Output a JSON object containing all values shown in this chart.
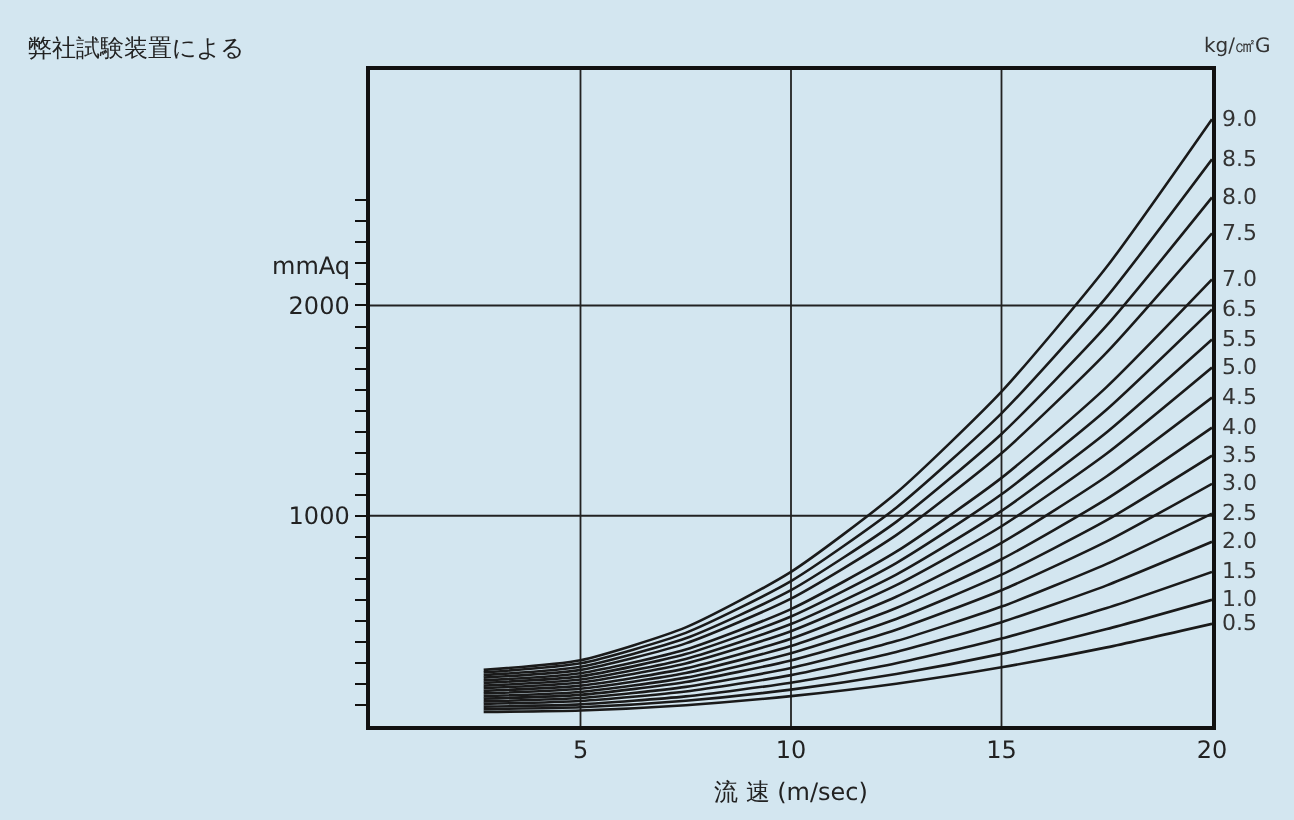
{
  "chart_data": {
    "type": "line",
    "title": "弊社試験装置による",
    "xlabel": "流 速 (m/sec)",
    "ylabel": "mmAq",
    "legend_title": "kg/㎠G",
    "x": [
      2.7,
      5,
      7.5,
      10,
      12.5,
      15,
      17.5,
      20
    ],
    "xlim": [
      0,
      20
    ],
    "xticks": [
      5,
      10,
      15,
      20
    ],
    "ylim": [
      0,
      3120
    ],
    "yticks": [
      {
        "value": 100,
        "label": null
      },
      {
        "value": 200,
        "label": null
      },
      {
        "value": 300,
        "label": null
      },
      {
        "value": 400,
        "label": null
      },
      {
        "value": 500,
        "label": null
      },
      {
        "value": 600,
        "label": null
      },
      {
        "value": 700,
        "label": null
      },
      {
        "value": 800,
        "label": null
      },
      {
        "value": 900,
        "label": null
      },
      1000,
      {
        "value": 1100,
        "label": null
      },
      {
        "value": 1200,
        "label": null
      },
      {
        "value": 1300,
        "label": null
      },
      {
        "value": 1400,
        "label": null
      },
      {
        "value": 1500,
        "label": null
      },
      {
        "value": 1600,
        "label": null
      },
      {
        "value": 1700,
        "label": null
      },
      {
        "value": 1800,
        "label": null
      },
      {
        "value": 1900,
        "label": null
      },
      2000,
      {
        "value": 2100,
        "label": null
      },
      {
        "value": 2200,
        "label": null
      },
      {
        "value": 2300,
        "label": null
      },
      {
        "value": 2400,
        "label": null
      },
      {
        "value": 2500,
        "label": null
      }
    ],
    "grid": true,
    "marker": "none",
    "line_style": "solid",
    "series": [
      {
        "name": "0.5",
        "color": "#1a1a1a",
        "values": [
          67,
          74,
          99,
          142,
          201,
          279,
          374,
          486
        ]
      },
      {
        "name": "1.0",
        "color": "#1a1a1a",
        "values": [
          80,
          89,
          120,
          173,
          247,
          343,
          461,
          600
        ]
      },
      {
        "name": "1.5",
        "color": "#1a1a1a",
        "values": [
          92,
          103,
          141,
          206,
          298,
          416,
          561,
          733
        ]
      },
      {
        "name": "2.0",
        "color": "#1a1a1a",
        "values": [
          105,
          119,
          164,
          242,
          352,
          494,
          669,
          876
        ]
      },
      {
        "name": "2.5",
        "color": "#1a1a1a",
        "values": [
          117,
          133,
          186,
          276,
          404,
          568,
          771,
          1010
        ]
      },
      {
        "name": "3.0",
        "color": "#1a1a1a",
        "values": [
          130,
          148,
          209,
          312,
          458,
          646,
          878,
          1152
        ]
      },
      {
        "name": "3.5",
        "color": "#1a1a1a",
        "values": [
          142,
          162,
          230,
          346,
          509,
          720,
          979,
          1286
        ]
      },
      {
        "name": "4.0",
        "color": "#1a1a1a",
        "values": [
          155,
          177,
          252,
          380,
          561,
          793,
          1080,
          1419
        ]
      },
      {
        "name": "4.5",
        "color": "#1a1a1a",
        "values": [
          167,
          192,
          274,
          415,
          615,
          871,
          1188,
          1562
        ]
      },
      {
        "name": "5.0",
        "color": "#1a1a1a",
        "values": [
          180,
          207,
          297,
          451,
          670,
          950,
          1296,
          1705
        ]
      },
      {
        "name": "5.5",
        "color": "#1a1a1a",
        "values": [
          192,
          221,
          319,
          485,
          720,
          1023,
          1397,
          1838
        ]
      },
      {
        "name": "6.5",
        "color": "#1a1a1a",
        "values": [
          205,
          236,
          342,
          521,
          775,
          1102,
          1505,
          1981
        ]
      },
      {
        "name": "7.0",
        "color": "#1a1a1a",
        "values": [
          217,
          251,
          364,
          556,
          829,
          1180,
          1613,
          2124
        ]
      },
      {
        "name": "7.5",
        "color": "#1a1a1a",
        "values": [
          230,
          267,
          393,
          606,
          908,
          1297,
          1777,
          2343
        ]
      },
      {
        "name": "8.0",
        "color": "#1a1a1a",
        "values": [
          242,
          282,
          417,
          646,
          971,
          1389,
          1905,
          2514
        ]
      },
      {
        "name": "8.5",
        "color": "#1a1a1a",
        "values": [
          255,
          298,
          443,
          689,
          1038,
          1487,
          2041,
          2695
        ]
      },
      {
        "name": "9.0",
        "color": "#1a1a1a",
        "values": [
          267,
          313,
          469,
          733,
          1108,
          1590,
          2184,
          2886
        ]
      }
    ]
  }
}
